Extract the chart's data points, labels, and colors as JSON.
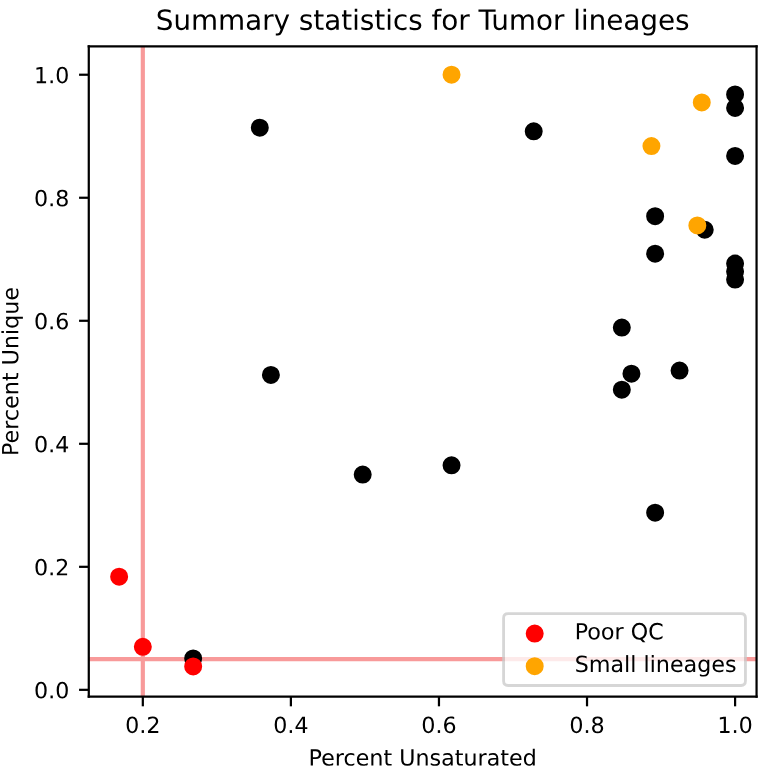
{
  "chart_data": {
    "type": "scatter",
    "title": "Summary statistics for Tumor lineages",
    "xlabel": "Percent Unsaturated",
    "ylabel": "Percent Unique",
    "xlim": [
      0.127,
      1.029
    ],
    "ylim": [
      -0.011,
      1.046
    ],
    "xticks": [
      0.2,
      0.4,
      0.6,
      0.8,
      {
        "value": 1,
        "label": "1.0"
      }
    ],
    "yticks": [
      {
        "value": 0,
        "label": "0.0"
      },
      0.2,
      0.4,
      0.6,
      0.8,
      {
        "value": 1,
        "label": "1.0"
      }
    ],
    "series": [
      {
        "color": "#000000",
        "x": [
          0.358,
          0.373,
          0.497,
          0.268,
          0.728,
          1.0,
          1.0,
          1.0,
          0.892,
          0.959,
          0.892,
          1.0,
          1.0,
          1.0,
          0.847,
          0.86,
          0.847,
          0.925,
          0.617,
          0.892
        ],
        "values": [
          0.914,
          0.512,
          0.35,
          0.051,
          0.908,
          0.968,
          0.946,
          0.868,
          0.77,
          0.748,
          0.709,
          0.693,
          0.68,
          0.667,
          0.589,
          0.514,
          0.488,
          0.519,
          0.365,
          0.288
        ]
      },
      {
        "name": "Poor QC",
        "color": "#ff0000",
        "x": [
          0.168,
          0.2,
          0.268
        ],
        "values": [
          0.184,
          0.07,
          0.038
        ]
      },
      {
        "name": "Small lineages",
        "color": "#ffa500",
        "x": [
          0.617,
          0.955,
          0.887,
          0.949
        ],
        "values": [
          1.0,
          0.955,
          0.884,
          0.755
        ]
      }
    ],
    "ref_lines": [
      {
        "axis": "x",
        "value": 0.2,
        "color": "#f89a9a"
      },
      {
        "axis": "y",
        "value": 0.05,
        "color": "#f89a9a"
      }
    ],
    "legend": "bottom right",
    "grid": false,
    "marker": "circle"
  }
}
